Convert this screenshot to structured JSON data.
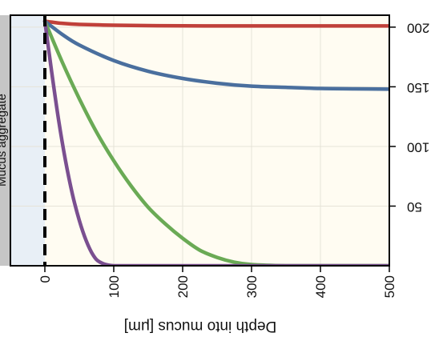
{
  "chart_data": {
    "type": "line",
    "orientation": "flipped-both-axes",
    "xlabel": "Depth into mucus [μm]",
    "ylabel": "",
    "left_band_label": "Mucus aggregate",
    "xlim": [
      -50,
      500
    ],
    "ylim": [
      0,
      210
    ],
    "xticks": [
      0,
      100,
      200,
      300,
      400,
      500
    ],
    "yticks": [
      50,
      100,
      150,
      200
    ],
    "grid": true,
    "series": [
      {
        "color": "#c0403a",
        "x": [
          0,
          10,
          25,
          50,
          100,
          150,
          200,
          300,
          400,
          500
        ],
        "y": [
          205,
          204.2,
          203.2,
          202.3,
          201.6,
          201.3,
          201.1,
          201.0,
          201.0,
          201.0
        ]
      },
      {
        "color": "#4a6f9e",
        "x": [
          0,
          25,
          50,
          100,
          150,
          200,
          250,
          300,
          350,
          400,
          450,
          500
        ],
        "y": [
          205,
          194,
          185,
          172,
          163,
          157,
          153,
          150.5,
          149.5,
          148.6,
          148.3,
          148.0
        ]
      },
      {
        "color": "#6aaa55",
        "x": [
          0,
          25,
          50,
          75,
          100,
          125,
          150,
          175,
          200,
          225,
          250,
          275,
          300,
          350,
          400,
          500
        ],
        "y": [
          205,
          171,
          140,
          112,
          88,
          67,
          49,
          35,
          23,
          13,
          7,
          3,
          1,
          0,
          0,
          0
        ]
      },
      {
        "color": "#7a4f90",
        "x": [
          0,
          10,
          20,
          30,
          40,
          50,
          60,
          70,
          80,
          100,
          150,
          500
        ],
        "y": [
          205,
          162,
          122,
          88,
          60,
          38,
          21,
          9,
          3,
          0,
          0,
          0
        ]
      }
    ]
  }
}
